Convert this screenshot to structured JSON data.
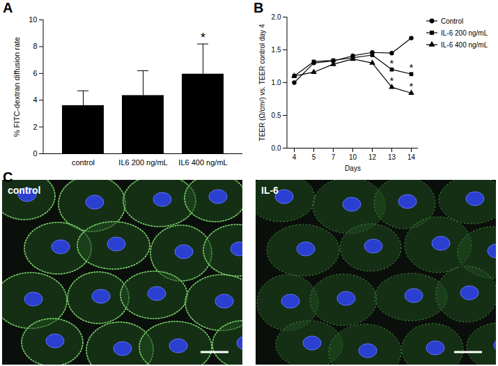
{
  "chart_data": [
    {
      "panel": "A",
      "type": "bar",
      "categories": [
        "control",
        "IL6 200 ng/mL",
        "IL6 400 ng/mL"
      ],
      "values": [
        3.6,
        4.35,
        5.95
      ],
      "error": [
        1.1,
        1.85,
        2.25
      ],
      "color": "#000000",
      "y_label": "% FITC-dextran diffusion rate",
      "ylim": [
        0,
        10
      ],
      "yticks": [
        0,
        2,
        4,
        6,
        8,
        10
      ],
      "annotations": [
        {
          "text": "*",
          "category": "IL6 400 ng/mL"
        }
      ]
    },
    {
      "panel": "B",
      "type": "line",
      "categories": [
        4,
        5,
        7,
        10,
        12,
        13,
        14
      ],
      "x_label": "Days",
      "y_label": "TEER (Ω/cm²) vs. TEER control day 4",
      "ylim": [
        0,
        2
      ],
      "yticks": [
        {
          "value": 0,
          "label": "0.0"
        },
        {
          "value": 0.5,
          "label": "0.5"
        },
        {
          "value": 1,
          "label": "1.0"
        },
        {
          "value": 1.5,
          "label": "1.5"
        },
        {
          "value": 2,
          "label": "2.0"
        }
      ],
      "legend": "right",
      "series": [
        {
          "name": "Control",
          "color": "#000000",
          "marker": "circle",
          "line_style": "solid",
          "values": [
            1.0,
            1.3,
            1.33,
            1.41,
            1.46,
            1.45,
            1.68
          ]
        },
        {
          "name": "IL-6 200 ng/mL",
          "color": "#000000",
          "marker": "square",
          "line_style": "solid",
          "values": [
            1.1,
            1.32,
            1.34,
            1.38,
            1.42,
            1.2,
            1.13
          ]
        },
        {
          "name": "IL-6 400 ng/mL",
          "color": "#000000",
          "marker": "triangle",
          "line_style": "solid",
          "values": [
            1.1,
            1.16,
            1.28,
            1.36,
            1.3,
            0.93,
            0.84
          ]
        }
      ],
      "annotations": [
        {
          "text": "*",
          "series": "IL-6 200 ng/mL",
          "x": 13
        },
        {
          "text": "*",
          "series": "IL-6 400 ng/mL",
          "x": 13
        },
        {
          "text": "*",
          "series": "IL-6 200 ng/mL",
          "x": 14
        },
        {
          "text": "*",
          "series": "IL-6 400 ng/mL",
          "x": 14
        }
      ]
    }
  ],
  "panel_c": {
    "panel": "C",
    "images": [
      {
        "label": "control"
      },
      {
        "label": "IL-6"
      }
    ]
  }
}
